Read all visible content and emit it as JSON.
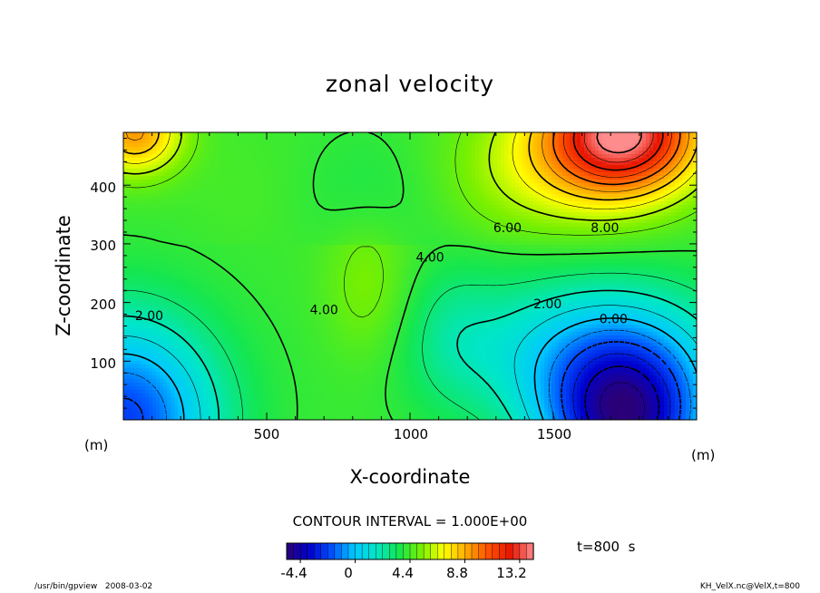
{
  "chart_data": {
    "type": "heatmap",
    "title": "zonal velocity",
    "xlabel": "X-coordinate",
    "ylabel": "Z-coordinate",
    "x_unit": "(m)",
    "y_unit": "(m)",
    "xlim": [
      0,
      2000
    ],
    "ylim": [
      0,
      490
    ],
    "x_ticks": [
      "500",
      "1000",
      "1500"
    ],
    "y_ticks": [
      "100",
      "200",
      "300",
      "400"
    ],
    "contour_interval_text": "CONTOUR INTERVAL = 1.000E+00",
    "contour_labels": [
      {
        "text": "2.00",
        "x": 90,
        "z": 170
      },
      {
        "text": "4.00",
        "x": 700,
        "z": 180
      },
      {
        "text": "4.00",
        "x": 1070,
        "z": 270
      },
      {
        "text": "6.00",
        "x": 1340,
        "z": 320
      },
      {
        "text": "8.00",
        "x": 1680,
        "z": 320
      },
      {
        "text": "2.00",
        "x": 1480,
        "z": 190
      },
      {
        "text": "0.00",
        "x": 1710,
        "z": 165
      }
    ],
    "colorbar_ticks": [
      "-4.4",
      "0",
      "4.4",
      "8.8",
      "13.2"
    ],
    "colorbar_range": [
      -5.5,
      14.3
    ],
    "value_range": [
      -5,
      14
    ],
    "time_label": "t=800  s",
    "colors": {
      "scale": [
        "#2a0078",
        "#0000cd",
        "#0050ff",
        "#00c8ff",
        "#00e6c8",
        "#14e650",
        "#78f000",
        "#ffff00",
        "#ffaa00",
        "#ff5000",
        "#e61400",
        "#ff8c8c"
      ]
    }
  },
  "footer": {
    "left": "/usr/bin/gpview   2008-03-02",
    "right": "KH_VelX.nc@VelX,t=800"
  }
}
